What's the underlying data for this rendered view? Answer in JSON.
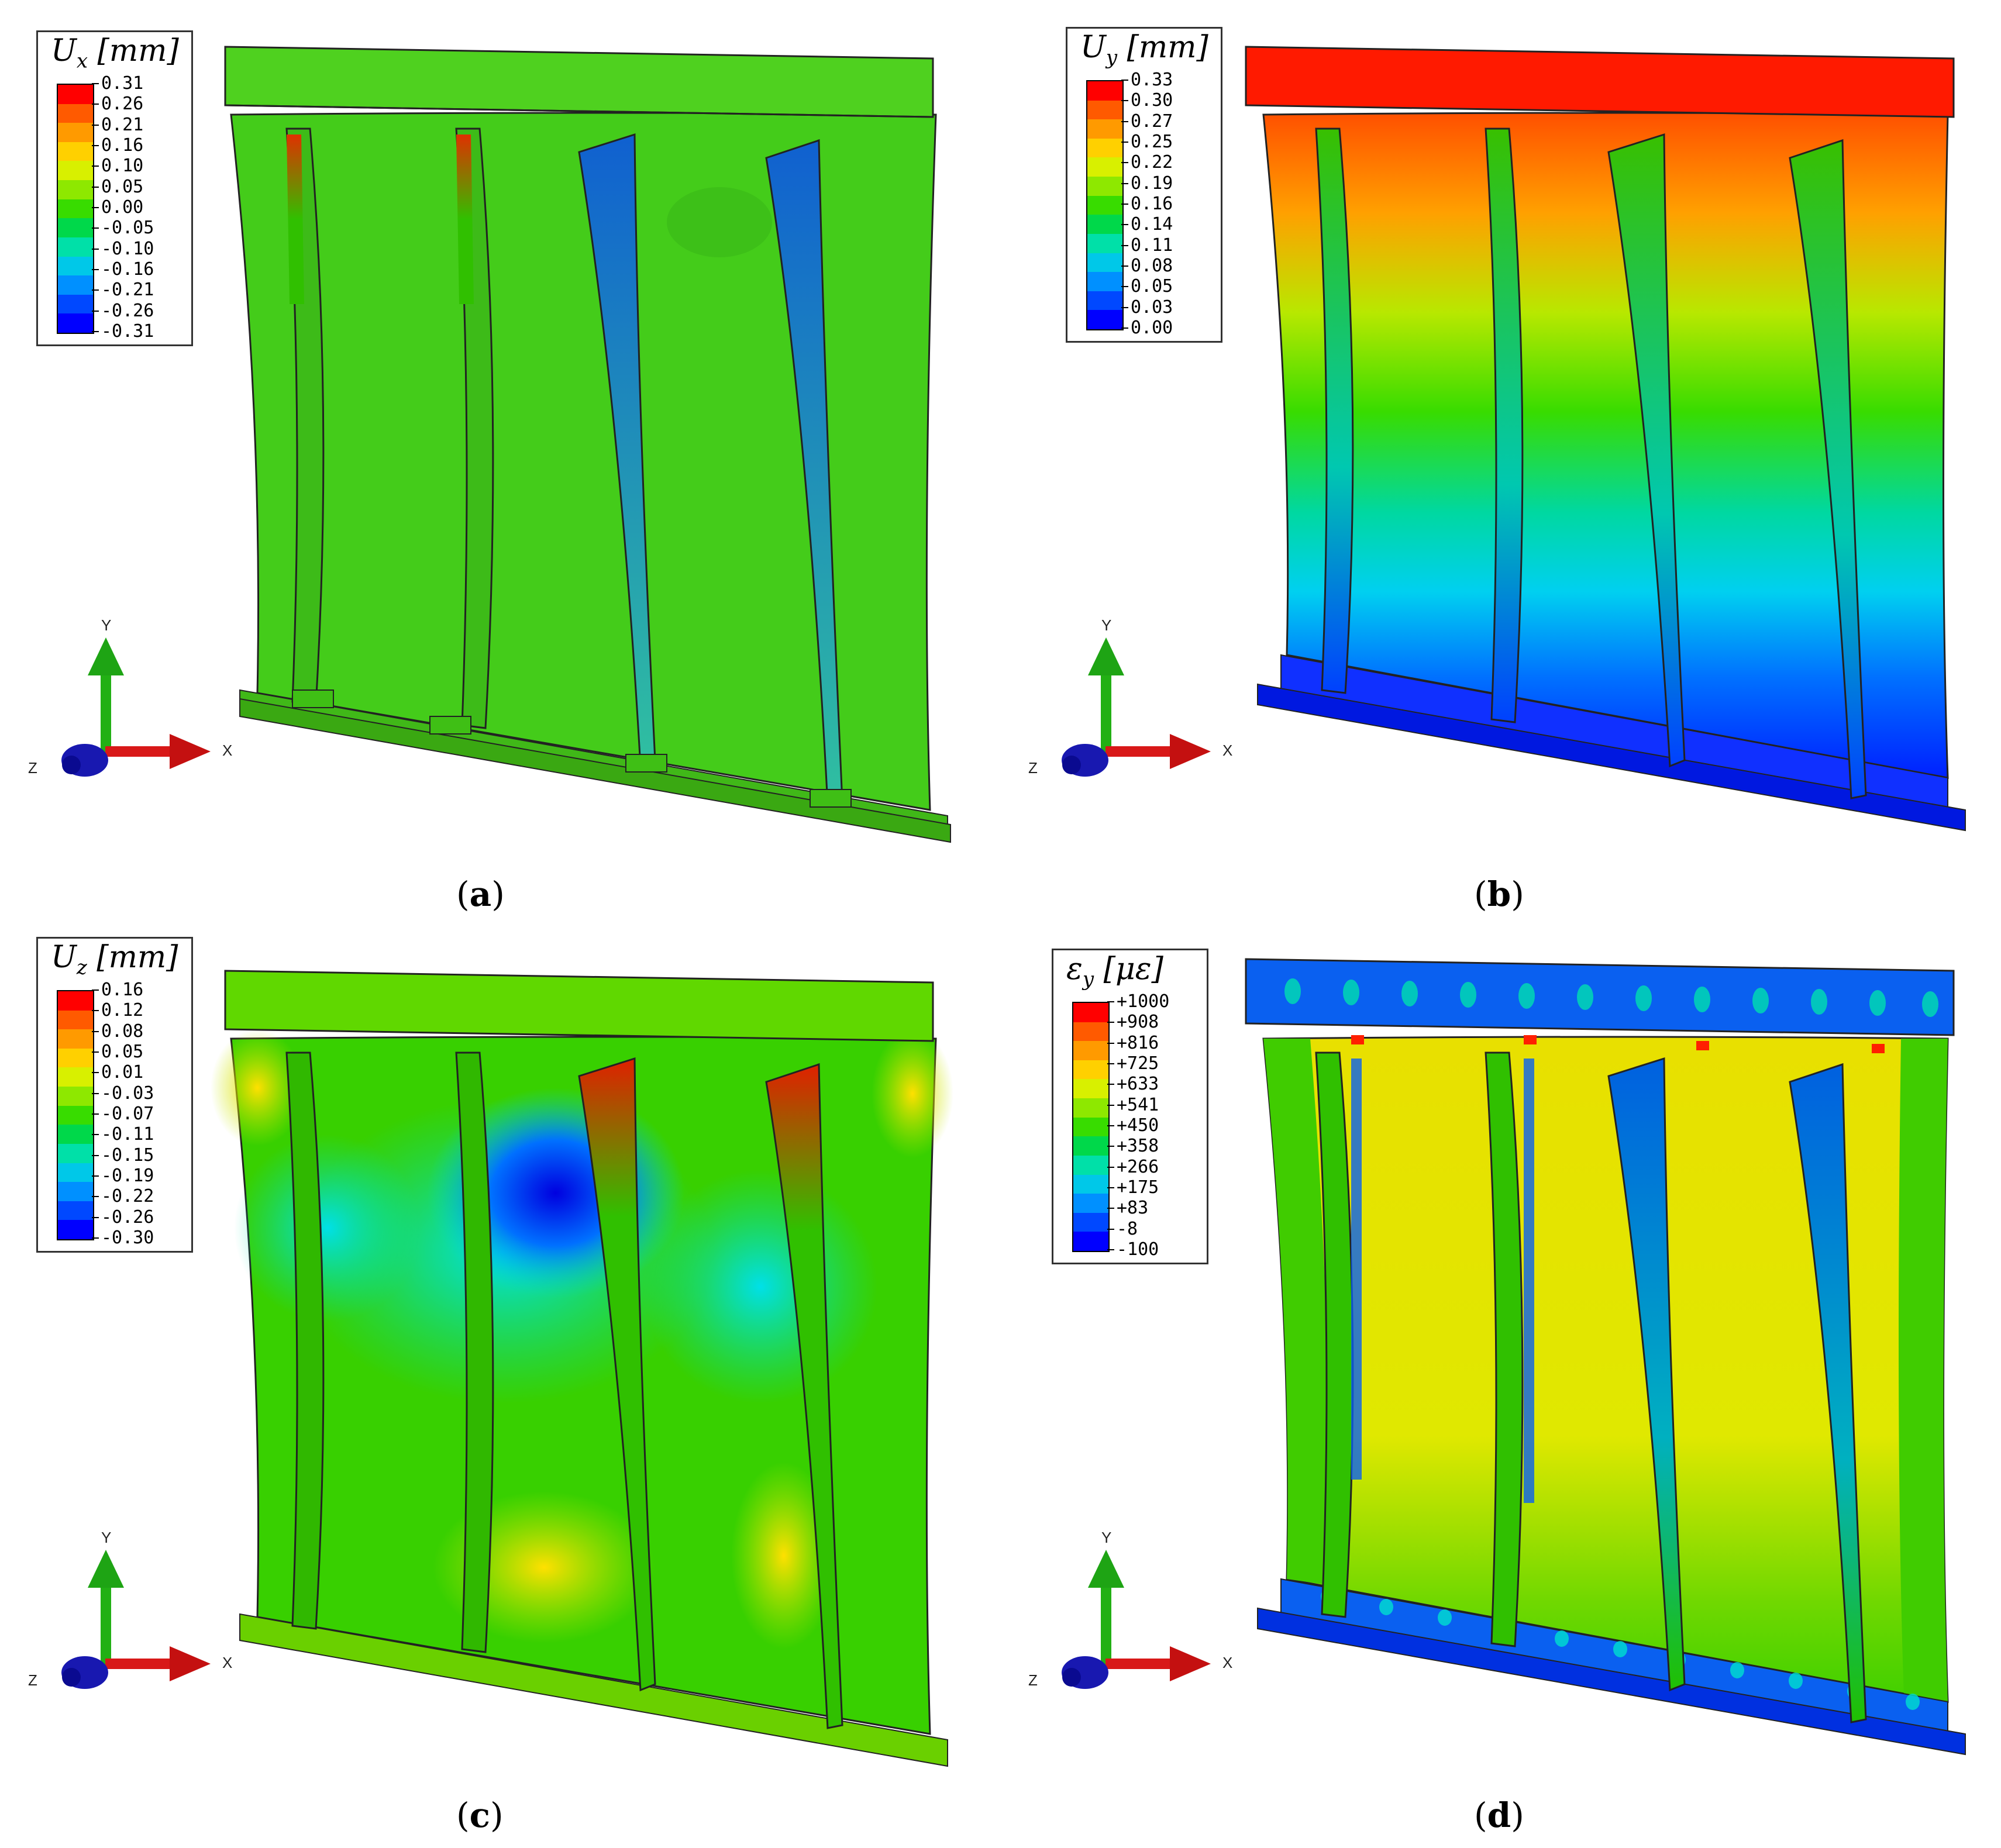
{
  "panels": [
    {
      "id": "a",
      "caption": "a",
      "legend": {
        "symbol": "U",
        "subscript": "x",
        "unit": "[mm]",
        "labels": [
          "0.31",
          "0.26",
          "0.21",
          "0.16",
          "0.10",
          "0.05",
          "0.00",
          "-0.05",
          "-0.10",
          "-0.16",
          "-0.21",
          "-0.26",
          "-0.31"
        ]
      }
    },
    {
      "id": "b",
      "caption": "b",
      "legend": {
        "symbol": "U",
        "subscript": "y",
        "unit": "[mm]",
        "labels": [
          "0.33",
          "0.30",
          "0.27",
          "0.25",
          "0.22",
          "0.19",
          "0.16",
          "0.14",
          "0.11",
          "0.08",
          "0.05",
          "0.03",
          "0.00"
        ]
      }
    },
    {
      "id": "c",
      "caption": "c",
      "legend": {
        "symbol": "U",
        "subscript": "z",
        "unit": "[mm]",
        "labels": [
          "0.16",
          "0.12",
          "0.08",
          "0.05",
          "0.01",
          "-0.03",
          "-0.07",
          "-0.11",
          "-0.15",
          "-0.19",
          "-0.22",
          "-0.26",
          "-0.30"
        ]
      }
    },
    {
      "id": "d",
      "caption": "d",
      "legend": {
        "symbol": "ε",
        "subscript": "y",
        "unit": "[με]",
        "labels": [
          "+1000",
          "+908",
          "+816",
          "+725",
          "+633",
          "+541",
          "+450",
          "+358",
          "+266",
          "+175",
          "+83",
          "-8",
          "-100"
        ]
      }
    }
  ],
  "triad": {
    "y_label": "Y",
    "x_label": "X",
    "z_label": "Z"
  },
  "colormap": [
    "#ff0000",
    "#ff5a00",
    "#ff9a00",
    "#ffd000",
    "#d8f000",
    "#8ee800",
    "#38dc00",
    "#00d84a",
    "#00e0a8",
    "#00c8e8",
    "#0090ff",
    "#0048ff",
    "#0000ff"
  ]
}
